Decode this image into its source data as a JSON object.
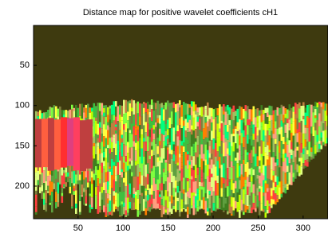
{
  "chart_data": {
    "type": "image",
    "title": "Distance map for positive wavelet coefficients cH1",
    "xlim": [
      0.5,
      327.5
    ],
    "ylim": [
      0.5,
      240.5
    ],
    "y_reversed": true,
    "xticks": [
      50,
      100,
      150,
      200,
      250,
      300
    ],
    "yticks": [
      50,
      100,
      150,
      200
    ],
    "background": "#3e3a0f"
  }
}
